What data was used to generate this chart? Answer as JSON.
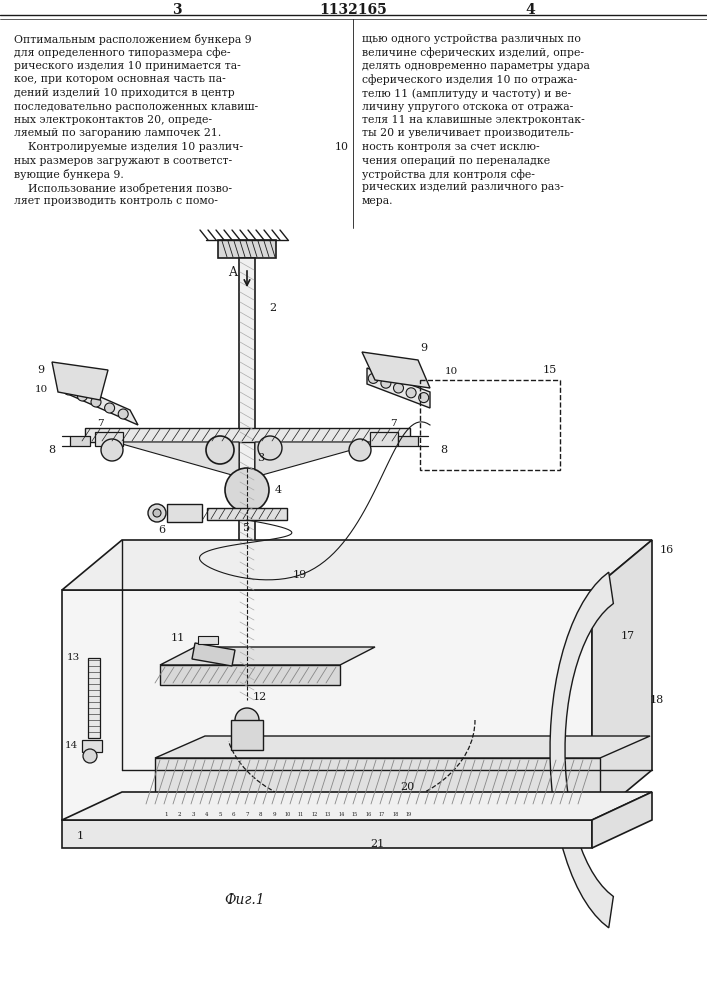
{
  "page_number_left": "3",
  "patent_number": "1132165",
  "page_number_right": "4",
  "text_left": "Оптимальным расположением бункера 9\nдля определенного типоразмера сфе-\nрического изделия 10 принимается та-\nкое, при котором основная часть па-\nдений изделий 10 приходится в центр\nпоследовательно расположенных клавиш-\nных электроконтактов 20, опреде-\nляемый по загоранию лампочек 21.\n    Контролируемые изделия 10 различ-\nных размеров загружают в соответст-\nвующие бункера 9.\n    Использование изобретения позво-\nляет производить контроль с помо-",
  "text_right": "щью одного устройства различных по\nвеличине сферических изделий, опре-\nделять одновременно параметры удара\nсферического изделия 10 по отража-\nтелю 11 (амплитуду и частоту) и ве-\nличину упругого отскока от отража-\nтеля 11 на клавишные электроконтак-\nты 20 и увеличивает производитель-\nность контроля за счет исклю-\nчения операций по переналадке\nустройства для контроля сфе-\nрических изделий различного раз-\nмера.",
  "fig_caption": "Фиг.1",
  "background_color": "#ffffff",
  "line_color": "#1a1a1a",
  "text_color": "#1a1a1a"
}
